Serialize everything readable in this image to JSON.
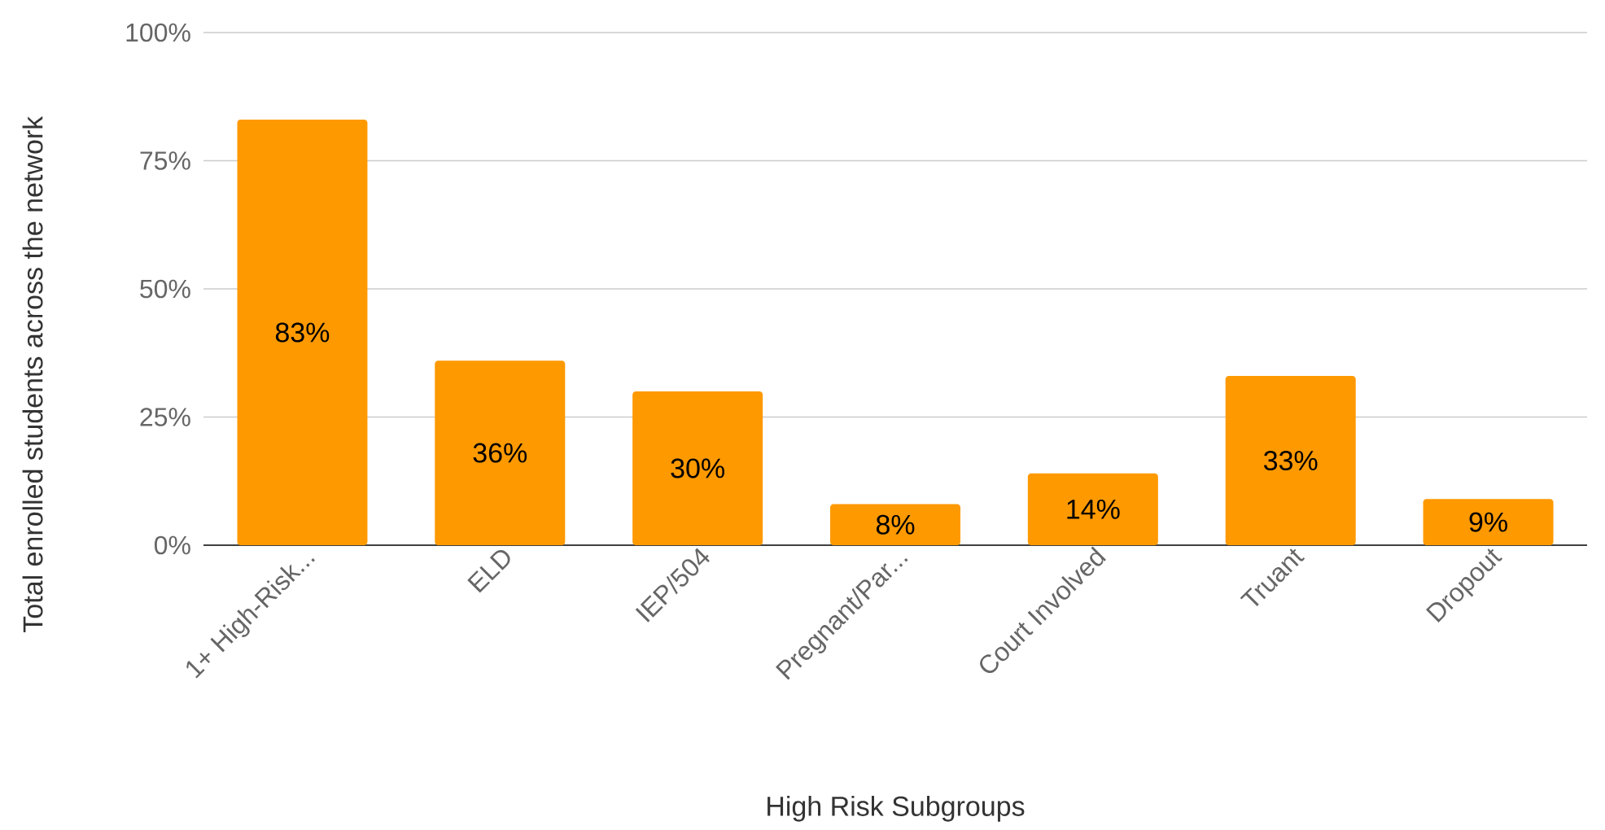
{
  "chart_data": {
    "type": "bar",
    "xlabel": "High Risk Subgroups",
    "ylabel": "Total enrolled students across the network",
    "categories": [
      "1+ High-Risk...",
      "ELD",
      "IEP/504",
      "Pregnant/Par...",
      "Court Involved",
      "Truant",
      "Dropout"
    ],
    "values": [
      83,
      36,
      30,
      8,
      14,
      33,
      9
    ],
    "value_labels": [
      "83%",
      "36%",
      "30%",
      "8%",
      "14%",
      "33%",
      "9%"
    ],
    "color": "#ff9900",
    "ylim": [
      0,
      100
    ],
    "yticks": [
      {
        "value": 0,
        "label": "0%"
      },
      {
        "value": 25,
        "label": "25%"
      },
      {
        "value": 50,
        "label": "50%"
      },
      {
        "value": 75,
        "label": "75%"
      },
      {
        "value": 100,
        "label": "100%"
      }
    ],
    "grid": "y"
  }
}
